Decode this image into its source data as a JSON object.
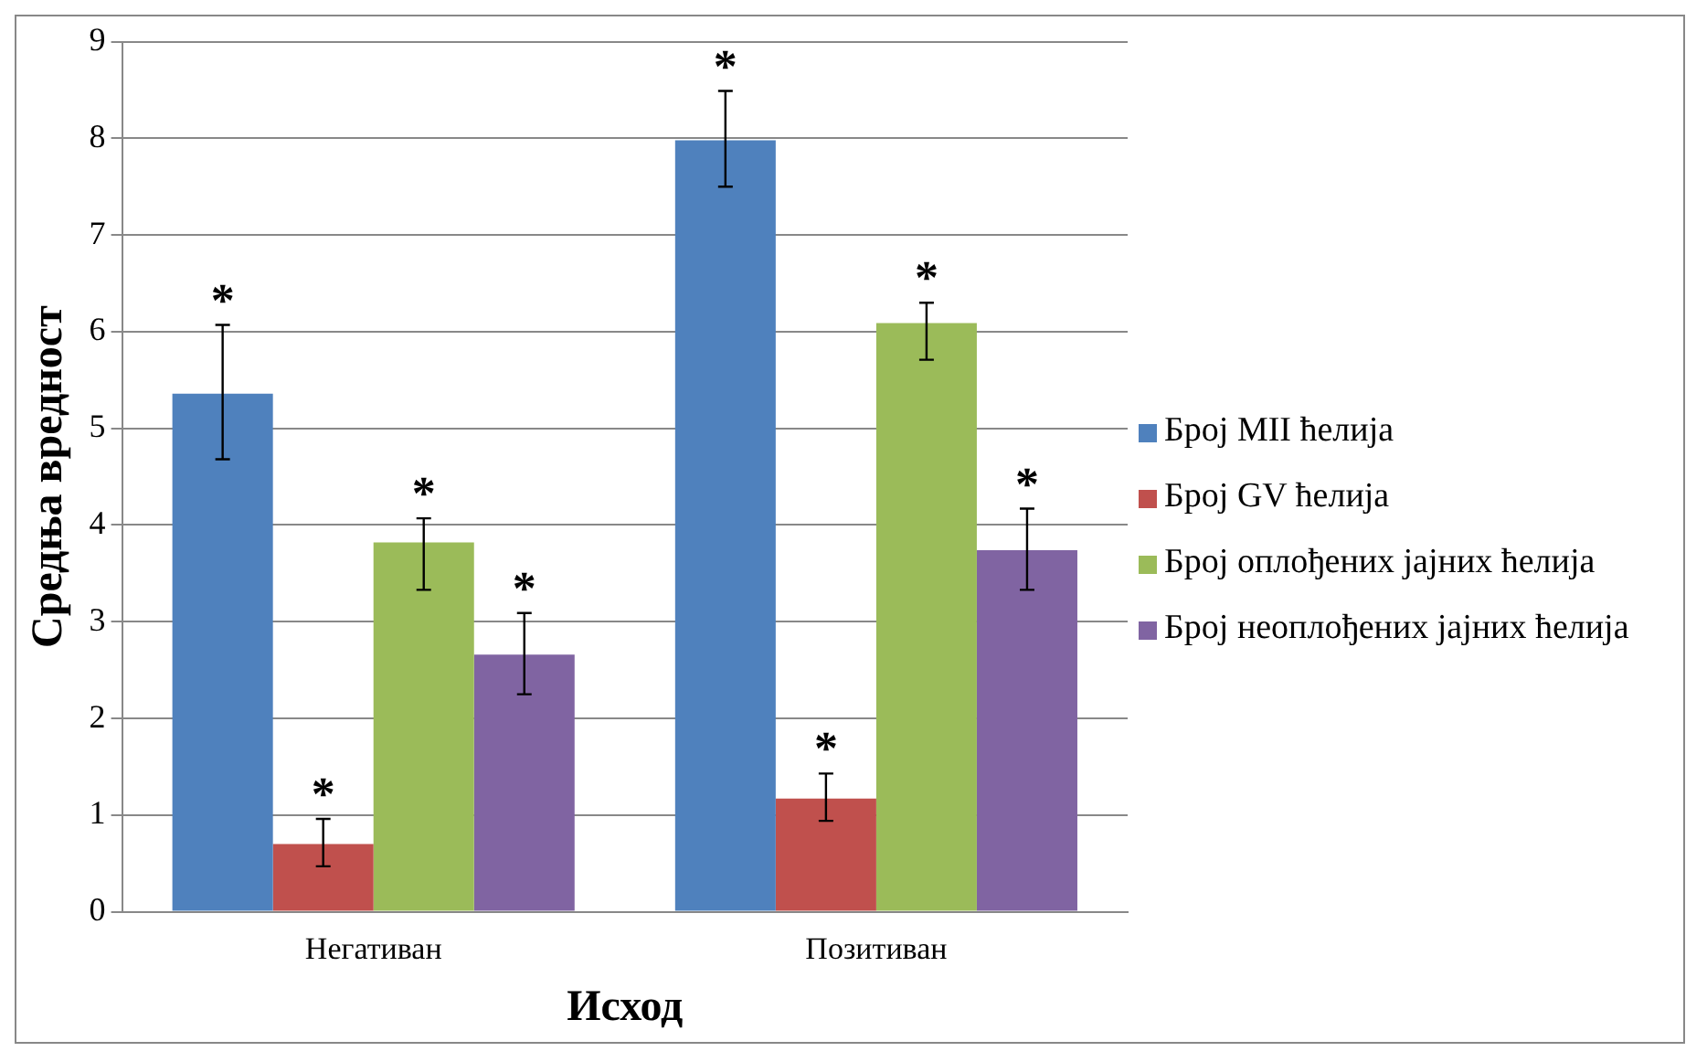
{
  "chart_data": {
    "type": "bar",
    "xlabel": "Исход",
    "ylabel": "Средња вредност",
    "categories": [
      "Негативан",
      "Позитиван"
    ],
    "series": [
      {
        "name": "Број MII ћелија",
        "color": "#4f81bd",
        "values": [
          5.36,
          7.98
        ],
        "errors": [
          [
            4.68,
            6.07
          ],
          [
            7.5,
            8.49
          ]
        ]
      },
      {
        "name": "Број GV ћелија",
        "color": "#c0504d",
        "values": [
          0.7,
          1.17
        ],
        "errors": [
          [
            0.47,
            0.96
          ],
          [
            0.94,
            1.43
          ]
        ]
      },
      {
        "name": "Број оплођених јајних ћелија",
        "color": "#9bbb59",
        "values": [
          3.82,
          6.09
        ],
        "errors": [
          [
            3.33,
            4.07
          ],
          [
            5.71,
            6.3
          ]
        ]
      },
      {
        "name": "Број неоплођених јајних ћелија",
        "color": "#8064a2",
        "values": [
          2.66,
          3.74
        ],
        "errors": [
          [
            2.25,
            3.09
          ],
          [
            3.33,
            4.17
          ]
        ]
      }
    ],
    "ylim": [
      0,
      9
    ],
    "yticks": [
      0,
      1,
      2,
      3,
      4,
      5,
      6,
      7,
      8,
      9
    ],
    "grid": "y",
    "legend": "right",
    "annotations": [
      "*",
      "*",
      "*",
      "*",
      "*",
      "*",
      "*",
      "*"
    ]
  }
}
